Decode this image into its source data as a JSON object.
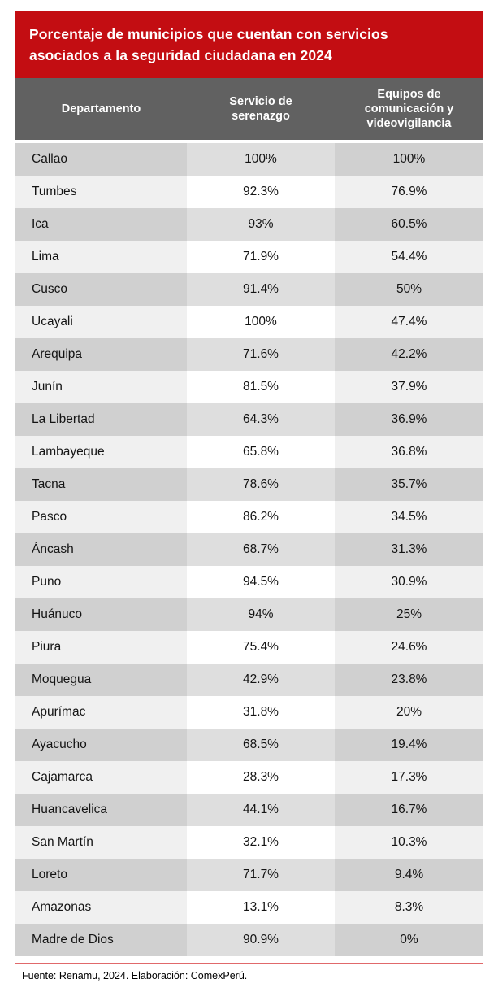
{
  "title": "Porcentaje de municipios que cuentan con servicios\nasociados a la seguridad ciudadana en 2024",
  "table": {
    "columns": [
      "Departamento",
      "Servicio de\nserenazgo",
      "Equipos de\ncomunicación y\nvideovigilancia"
    ],
    "rows": [
      {
        "departamento": "Callao",
        "serenazgo": "100%",
        "equipos": "100%"
      },
      {
        "departamento": "Tumbes",
        "serenazgo": "92.3%",
        "equipos": "76.9%"
      },
      {
        "departamento": "Ica",
        "serenazgo": "93%",
        "equipos": "60.5%"
      },
      {
        "departamento": "Lima",
        "serenazgo": "71.9%",
        "equipos": "54.4%"
      },
      {
        "departamento": "Cusco",
        "serenazgo": "91.4%",
        "equipos": "50%"
      },
      {
        "departamento": "Ucayali",
        "serenazgo": "100%",
        "equipos": "47.4%"
      },
      {
        "departamento": "Arequipa",
        "serenazgo": "71.6%",
        "equipos": "42.2%"
      },
      {
        "departamento": "Junín",
        "serenazgo": "81.5%",
        "equipos": "37.9%"
      },
      {
        "departamento": "La Libertad",
        "serenazgo": "64.3%",
        "equipos": "36.9%"
      },
      {
        "departamento": "Lambayeque",
        "serenazgo": "65.8%",
        "equipos": "36.8%"
      },
      {
        "departamento": "Tacna",
        "serenazgo": "78.6%",
        "equipos": "35.7%"
      },
      {
        "departamento": "Pasco",
        "serenazgo": "86.2%",
        "equipos": "34.5%"
      },
      {
        "departamento": "Áncash",
        "serenazgo": "68.7%",
        "equipos": "31.3%"
      },
      {
        "departamento": "Puno",
        "serenazgo": "94.5%",
        "equipos": "30.9%"
      },
      {
        "departamento": "Huánuco",
        "serenazgo": "94%",
        "equipos": "25%"
      },
      {
        "departamento": "Piura",
        "serenazgo": "75.4%",
        "equipos": "24.6%"
      },
      {
        "departamento": "Moquegua",
        "serenazgo": "42.9%",
        "equipos": "23.8%"
      },
      {
        "departamento": "Apurímac",
        "serenazgo": "31.8%",
        "equipos": "20%"
      },
      {
        "departamento": "Ayacucho",
        "serenazgo": "68.5%",
        "equipos": "19.4%"
      },
      {
        "departamento": "Cajamarca",
        "serenazgo": "28.3%",
        "equipos": "17.3%"
      },
      {
        "departamento": "Huancavelica",
        "serenazgo": "44.1%",
        "equipos": "16.7%"
      },
      {
        "departamento": "San Martín",
        "serenazgo": "32.1%",
        "equipos": "10.3%"
      },
      {
        "departamento": "Loreto",
        "serenazgo": "71.7%",
        "equipos": "9.4%"
      },
      {
        "departamento": "Amazonas",
        "serenazgo": "13.1%",
        "equipos": "8.3%"
      },
      {
        "departamento": "Madre de Dios",
        "serenazgo": "90.9%",
        "equipos": "0%"
      }
    ]
  },
  "footer": {
    "source": "Fuente: Renamu, 2024. Elaboración: ComexPerú."
  },
  "colors": {
    "banner_red": "#c30d12",
    "header_gray": "#616161",
    "row_dark_outer": "#d0d0d0",
    "row_dark_mid": "#dedede",
    "row_light_outer": "#f0f0f0",
    "row_light_mid": "#ffffff",
    "rule_red": "#e0696b"
  },
  "chart_data": {
    "type": "table",
    "title": "Porcentaje de municipios que cuentan con servicios asociados a la seguridad ciudadana en 2024",
    "columns": [
      "Departamento",
      "Servicio de serenazgo",
      "Equipos de comunicación y videovigilancia"
    ],
    "categories": [
      "Callao",
      "Tumbes",
      "Ica",
      "Lima",
      "Cusco",
      "Ucayali",
      "Arequipa",
      "Junín",
      "La Libertad",
      "Lambayeque",
      "Tacna",
      "Pasco",
      "Áncash",
      "Puno",
      "Huánuco",
      "Piura",
      "Moquegua",
      "Apurímac",
      "Ayacucho",
      "Cajamarca",
      "Huancavelica",
      "San Martín",
      "Loreto",
      "Amazonas",
      "Madre de Dios"
    ],
    "series": [
      {
        "name": "Servicio de serenazgo",
        "values": [
          100,
          92.3,
          93,
          71.9,
          91.4,
          100,
          71.6,
          81.5,
          64.3,
          65.8,
          78.6,
          86.2,
          68.7,
          94.5,
          94,
          75.4,
          42.9,
          31.8,
          68.5,
          28.3,
          44.1,
          32.1,
          71.7,
          13.1,
          90.9
        ]
      },
      {
        "name": "Equipos de comunicación y videovigilancia",
        "values": [
          100,
          76.9,
          60.5,
          54.4,
          50,
          47.4,
          42.2,
          37.9,
          36.9,
          36.8,
          35.7,
          34.5,
          31.3,
          30.9,
          25,
          24.6,
          23.8,
          20,
          19.4,
          17.3,
          16.7,
          10.3,
          9.4,
          8.3,
          0
        ]
      }
    ],
    "unit": "%",
    "source": "Fuente: Renamu, 2024. Elaboración: ComexPerú."
  }
}
